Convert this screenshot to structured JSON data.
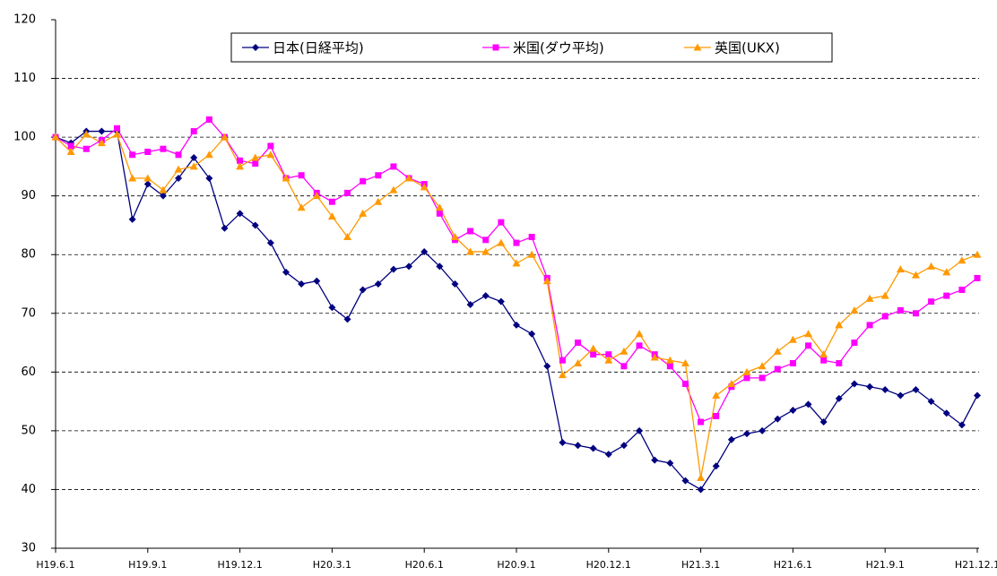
{
  "chart_data": {
    "type": "line",
    "categories": [
      "H19.6.1",
      null,
      null,
      null,
      null,
      null,
      "H19.9.1",
      null,
      null,
      null,
      null,
      null,
      "H19.12.1",
      null,
      null,
      null,
      null,
      null,
      "H20.3.1",
      null,
      null,
      null,
      null,
      null,
      "H20.6.1",
      null,
      null,
      null,
      null,
      null,
      "H20.9.1",
      null,
      null,
      null,
      null,
      null,
      "H20.12.1",
      null,
      null,
      null,
      null,
      null,
      "H21.3.1",
      null,
      null,
      null,
      null,
      null,
      "H21.6.1",
      null,
      null,
      null,
      null,
      null,
      "H21.9.1",
      null,
      null,
      null,
      null,
      null,
      "H21.12.1"
    ],
    "series": [
      {
        "name": "日本(日経平均)",
        "color": "#000080",
        "marker": "diamond",
        "values": [
          100,
          99,
          101,
          101,
          101,
          86,
          92,
          90,
          93,
          96.5,
          93,
          84.5,
          87,
          85,
          82,
          77,
          75,
          75.5,
          71,
          69,
          74,
          75,
          77.5,
          78,
          80.5,
          78,
          75,
          71.5,
          73,
          72,
          68,
          66.5,
          61,
          48,
          47.5,
          47,
          46,
          47.5,
          50,
          45,
          44.5,
          41.5,
          40,
          44,
          48.5,
          49.5,
          50,
          52,
          53.5,
          54.5,
          51.5,
          55.5,
          58,
          57.5,
          57,
          56,
          57,
          55,
          53,
          51,
          56
        ]
      },
      {
        "name": "米国(ダウ平均)",
        "color": "#ff00ff",
        "marker": "square",
        "values": [
          100,
          98.5,
          98,
          99.5,
          101.5,
          97,
          97.5,
          98,
          97,
          101,
          103,
          100,
          96,
          95.5,
          98.5,
          93,
          93.5,
          90.5,
          89,
          90.5,
          92.5,
          93.5,
          95,
          93,
          92,
          87,
          82.5,
          84,
          82.5,
          85.5,
          82,
          83,
          76,
          62,
          65,
          63,
          63,
          61,
          64.5,
          63,
          61,
          58,
          51.5,
          52.5,
          57.5,
          59,
          59,
          60.5,
          61.5,
          64.5,
          62,
          61.5,
          65,
          68,
          69.5,
          70.5,
          70,
          72,
          73,
          74,
          76
        ]
      },
      {
        "name": "英国(UKX)",
        "color": "#ff9900",
        "marker": "triangle",
        "values": [
          100,
          97.5,
          100.5,
          99,
          100.5,
          93,
          93,
          91,
          94.5,
          95,
          97,
          100,
          95,
          96.5,
          97,
          93,
          88,
          90,
          86.5,
          83,
          87,
          89,
          91,
          93,
          91.5,
          88,
          83,
          80.5,
          80.5,
          82,
          78.5,
          80,
          75.5,
          59.5,
          61.5,
          64,
          62,
          63.5,
          66.5,
          62.5,
          62,
          61.5,
          42,
          56,
          58,
          60,
          61,
          63.5,
          65.5,
          66.5,
          63,
          68,
          70.5,
          72.5,
          73,
          77.5,
          76.5,
          78,
          77,
          79,
          80
        ]
      }
    ],
    "ylim": [
      30,
      120
    ],
    "yticks": [
      30,
      40,
      50,
      60,
      70,
      80,
      90,
      100,
      110,
      120
    ],
    "grid": true,
    "legend": "top"
  }
}
